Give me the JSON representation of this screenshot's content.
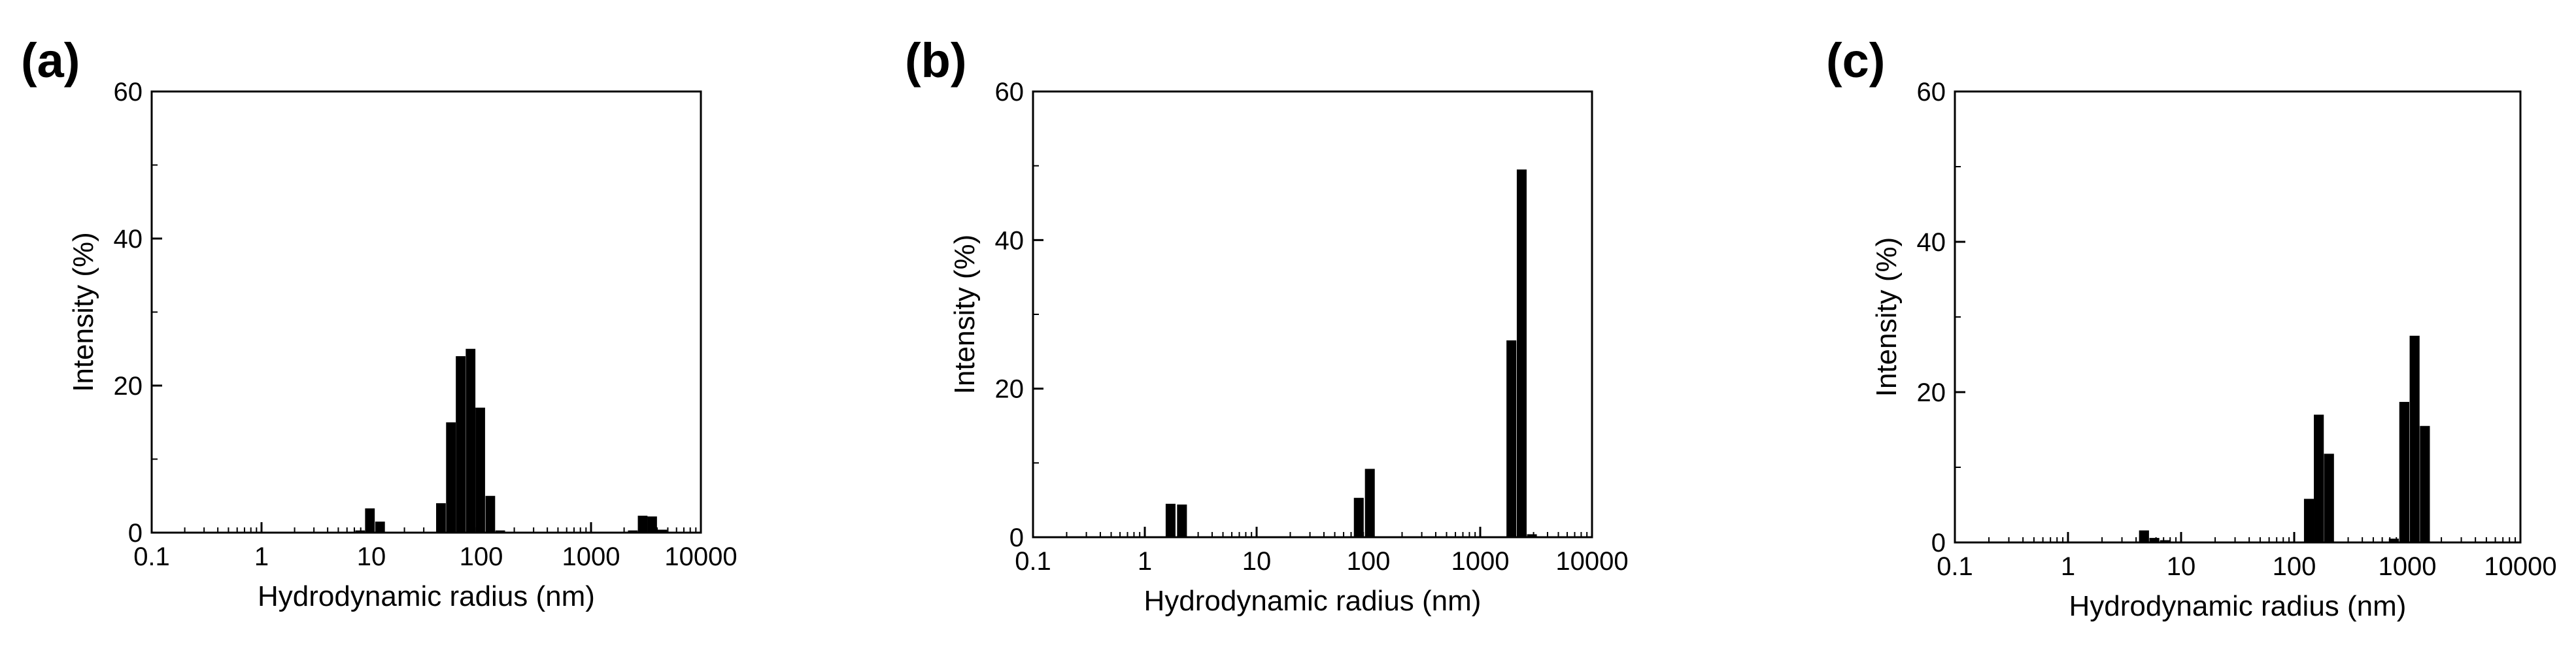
{
  "chart_data": [
    {
      "panel_label": "(a)",
      "type": "bar",
      "xscale": "log",
      "xlim": [
        0.1,
        10000
      ],
      "ylim": [
        0,
        60
      ],
      "xlabel": "Hydrodynamic radius (nm)",
      "ylabel": "Intensity (%)",
      "xticks": [
        "0.1",
        "1",
        "10",
        "100",
        "1000",
        "10000"
      ],
      "yticks": [
        "0",
        "20",
        "40",
        "60"
      ],
      "grid": false,
      "x": [
        7.9,
        9.7,
        12,
        43,
        53,
        65,
        80,
        98,
        121,
        149,
        2400,
        2950,
        3600,
        4450
      ],
      "values": [
        0.3,
        3.3,
        1.5,
        4.0,
        15.0,
        24.0,
        25.0,
        17.0,
        5.0,
        0.3,
        0.3,
        2.3,
        2.2,
        0.4
      ]
    },
    {
      "panel_label": "(b)",
      "type": "bar",
      "xscale": "log",
      "xlim": [
        0.1,
        10000
      ],
      "ylim": [
        0,
        60
      ],
      "xlabel": "Hydrodynamic radius (nm)",
      "ylabel": "Intensity (%)",
      "xticks": [
        "0.1",
        "1",
        "10",
        "100",
        "1000",
        "10000"
      ],
      "yticks": [
        "0",
        "20",
        "40",
        "60"
      ],
      "grid": false,
      "x": [
        1.7,
        2.15,
        82,
        103,
        1900,
        2350,
        2900
      ],
      "values": [
        4.5,
        4.4,
        5.3,
        9.2,
        26.5,
        49.5,
        0.4
      ]
    },
    {
      "panel_label": "(c)",
      "type": "bar",
      "xscale": "log",
      "xlim": [
        0.1,
        10000
      ],
      "ylim": [
        0,
        60
      ],
      "xlabel": "Hydrodynamic radius (nm)",
      "ylabel": "Intensity (%)",
      "xticks": [
        "0.1",
        "1",
        "10",
        "100",
        "1000",
        "10000"
      ],
      "yticks": [
        "0",
        "20",
        "40",
        "60"
      ],
      "grid": false,
      "x": [
        4.7,
        5.8,
        7.2,
        135,
        165,
        203,
        760,
        940,
        1160,
        1430
      ],
      "values": [
        1.6,
        0.6,
        0.3,
        5.8,
        17.0,
        11.8,
        0.5,
        18.7,
        27.5,
        15.5
      ]
    }
  ]
}
